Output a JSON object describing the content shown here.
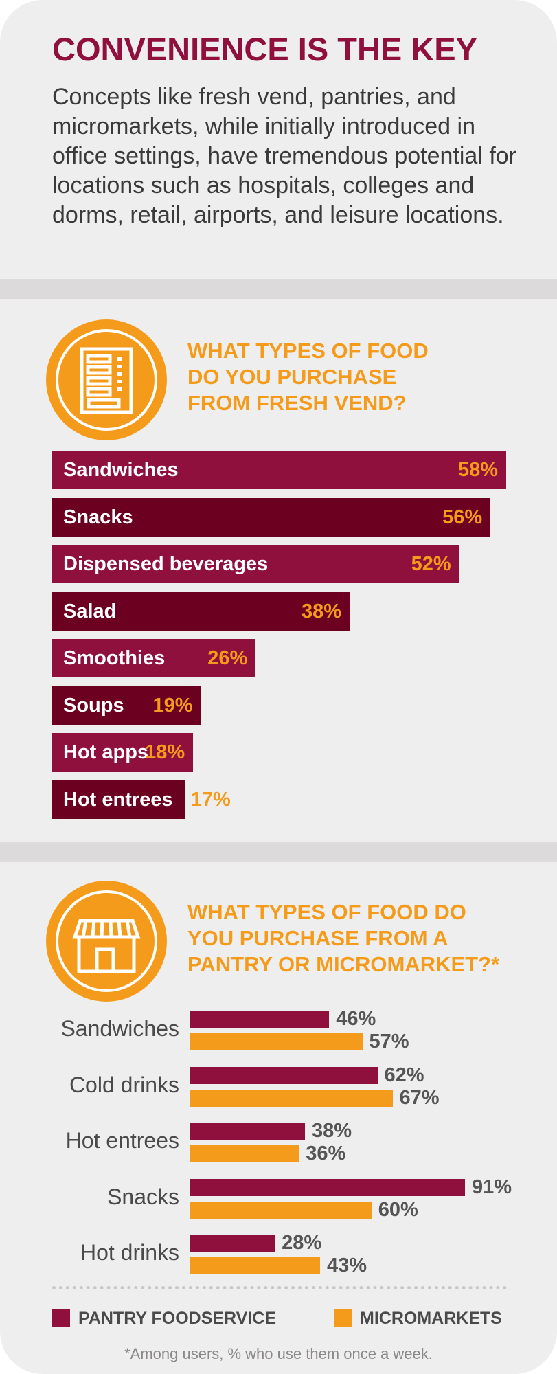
{
  "header": {
    "title": "CONVENIENCE IS THE KEY",
    "intro": "Concepts like fresh vend, pantries, and micromarkets, while initially introduced in office settings, have tremendous potential for locations such as hospitals, colleges and dorms, retail, airports, and leisure locations."
  },
  "icons": {
    "fresh_vend": "vending-machine-icon",
    "micromarket": "storefront-icon"
  },
  "colors": {
    "crimson": "#8f0f3d",
    "dark_crimson": "#6b0020",
    "orange": "#f49b1b",
    "gray_text": "#555555"
  },
  "chart_data": [
    {
      "type": "bar",
      "orientation": "horizontal",
      "title": "WHAT TYPES OF FOOD DO YOU PURCHASE FROM FRESH VEND?",
      "title_lines": [
        "WHAT TYPES OF FOOD",
        "DO YOU PURCHASE",
        "FROM FRESH VEND?"
      ],
      "categories": [
        "Sandwiches",
        "Snacks",
        "Dispensed beverages",
        "Salad",
        "Smoothies",
        "Soups",
        "Hot apps",
        "Hot entrees"
      ],
      "values": [
        58,
        56,
        52,
        38,
        26,
        19,
        18,
        17
      ],
      "value_labels": [
        "58%",
        "56%",
        "52%",
        "38%",
        "26%",
        "19%",
        "18%",
        "17%"
      ],
      "unit": "%",
      "xlim": [
        0,
        60
      ],
      "grid": false
    },
    {
      "type": "bar",
      "orientation": "horizontal",
      "title": "WHAT TYPES OF FOOD DO YOU PURCHASE FROM A PANTRY OR MICROMARKET?*",
      "title_lines": [
        "WHAT TYPES OF FOOD DO",
        "YOU PURCHASE FROM A",
        "PANTRY OR MICROMARKET?*"
      ],
      "categories": [
        "Sandwiches",
        "Cold drinks",
        "Hot entrees",
        "Snacks",
        "Hot drinks"
      ],
      "series": [
        {
          "name": "PANTRY FOODSERVICE",
          "color": "#8f0f3d",
          "values": [
            46,
            62,
            38,
            91,
            28
          ],
          "value_labels": [
            "46%",
            "62%",
            "38%",
            "91%",
            "28%"
          ]
        },
        {
          "name": "MICROMARKETS",
          "color": "#f49b1b",
          "values": [
            57,
            67,
            36,
            60,
            43
          ],
          "value_labels": [
            "57%",
            "67%",
            "36%",
            "60%",
            "43%"
          ]
        }
      ],
      "unit": "%",
      "xlim": [
        0,
        100
      ],
      "grid": false,
      "legend_position": "bottom",
      "footnote": "*Among users, % who use them once a week."
    }
  ]
}
